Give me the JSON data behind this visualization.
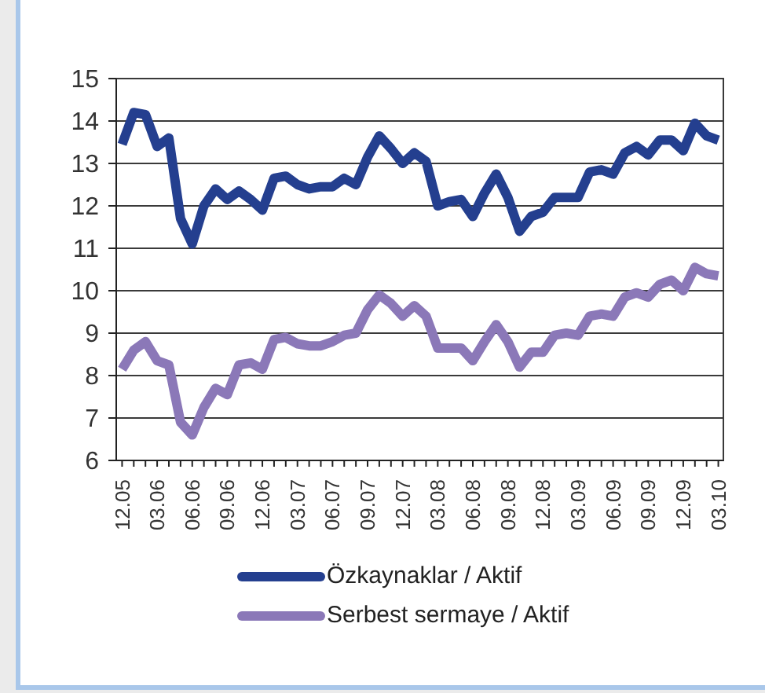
{
  "chart_data": {
    "type": "line",
    "categories": [
      "12.05",
      null,
      null,
      "03.06",
      null,
      null,
      "06.06",
      null,
      null,
      "09.06",
      null,
      null,
      "12.06",
      null,
      null,
      "03.07",
      null,
      null,
      "06.07",
      null,
      null,
      "09.07",
      null,
      null,
      "12.07",
      null,
      null,
      "03.08",
      null,
      null,
      "06.08",
      null,
      null,
      "09.08",
      null,
      null,
      "12.08",
      null,
      null,
      "03.09",
      null,
      null,
      "06.09",
      null,
      null,
      "09.09",
      null,
      null,
      "12.09",
      null,
      null,
      "03.10"
    ],
    "series": [
      {
        "name": "Özkaynaklar / Aktif",
        "color": "#243f8f",
        "values": [
          13.45,
          14.2,
          14.15,
          13.4,
          13.6,
          11.7,
          11.1,
          12.0,
          12.4,
          12.15,
          12.35,
          12.15,
          11.9,
          12.65,
          12.7,
          12.5,
          12.4,
          12.45,
          12.45,
          12.65,
          12.5,
          13.15,
          13.65,
          13.35,
          13.0,
          13.25,
          13.05,
          12.0,
          12.1,
          12.15,
          11.75,
          12.3,
          12.75,
          12.2,
          11.4,
          11.75,
          11.85,
          12.2,
          12.2,
          12.2,
          12.8,
          12.85,
          12.75,
          13.25,
          13.4,
          13.2,
          13.55,
          13.55,
          13.3,
          13.95,
          13.65,
          13.55
        ]
      },
      {
        "name": "Serbest sermaye / Aktif",
        "color": "#8b78b8",
        "values": [
          8.15,
          8.6,
          8.8,
          8.35,
          8.25,
          6.9,
          6.6,
          7.25,
          7.7,
          7.55,
          8.25,
          8.3,
          8.15,
          8.85,
          8.9,
          8.75,
          8.7,
          8.7,
          8.8,
          8.95,
          9.0,
          9.55,
          9.9,
          9.7,
          9.4,
          9.65,
          9.4,
          8.65,
          8.65,
          8.65,
          8.35,
          8.8,
          9.2,
          8.8,
          8.2,
          8.55,
          8.55,
          8.95,
          9.0,
          8.95,
          9.4,
          9.45,
          9.4,
          9.85,
          9.95,
          9.85,
          10.15,
          10.25,
          10.0,
          10.55,
          10.4,
          10.35
        ]
      }
    ],
    "ylim": [
      6,
      15
    ],
    "yticks": [
      6,
      7,
      8,
      9,
      10,
      11,
      12,
      13,
      14,
      15
    ],
    "grid": "y",
    "legend": "bottom",
    "line_style": "solid"
  }
}
